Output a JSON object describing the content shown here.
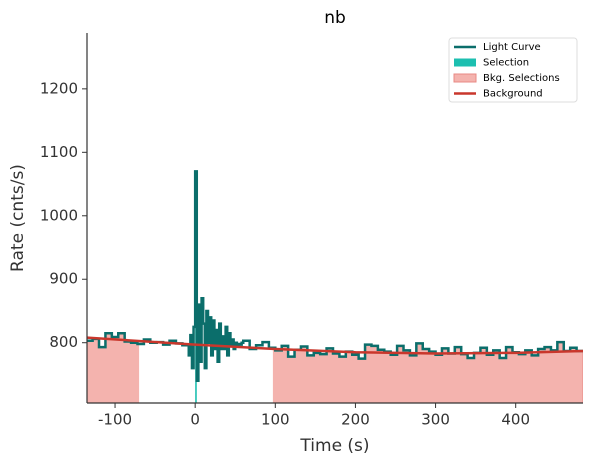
{
  "chart_data": {
    "type": "lightcurve",
    "title": "nb",
    "xlabel": "Time (s)",
    "ylabel": "Rate (cnts/s)",
    "xlim": [
      -135,
      484
    ],
    "ylim": [
      705,
      1288
    ],
    "xticks": [
      -100,
      0,
      100,
      200,
      300,
      400
    ],
    "yticks": [
      800,
      900,
      1000,
      1100,
      1200
    ],
    "legend_loc": "upper right",
    "series": [
      {
        "name": "Light Curve",
        "color": "#0b6e6b",
        "x": [
          -136,
          -128,
          -120,
          -112,
          -104,
          -96,
          -88,
          -80,
          -72,
          -64,
          -56,
          -48,
          -40,
          -32,
          -24,
          -16,
          -8,
          -6,
          -4,
          -2,
          0,
          2,
          4,
          6,
          8,
          10,
          12,
          14,
          16,
          18,
          20,
          22,
          24,
          26,
          28,
          30,
          32,
          34,
          36,
          38,
          40,
          42,
          44,
          46,
          48,
          50,
          52,
          54,
          56,
          58,
          60,
          68,
          76,
          84,
          92,
          100,
          108,
          116,
          124,
          132,
          140,
          148,
          156,
          164,
          172,
          180,
          188,
          196,
          204,
          212,
          220,
          228,
          236,
          244,
          252,
          260,
          268,
          276,
          284,
          292,
          300,
          308,
          316,
          324,
          332,
          340,
          348,
          356,
          364,
          372,
          380,
          388,
          396,
          404,
          412,
          420,
          428,
          436,
          444,
          452,
          460,
          468,
          476
        ],
        "values": [
          803,
          806,
          793,
          815,
          809,
          815,
          802,
          800,
          798,
          805,
          800,
          801,
          797,
          803,
          799,
          796,
          780,
          812,
          760,
          825,
          1070,
          740,
          860,
          770,
          870,
          830,
          760,
          850,
          800,
          840,
          780,
          835,
          790,
          820,
          770,
          830,
          790,
          810,
          790,
          825,
          780,
          815,
          795,
          805,
          790,
          800,
          795,
          798,
          797,
          800,
          803,
          790,
          796,
          801,
          792,
          788,
          795,
          778,
          789,
          794,
          780,
          784,
          782,
          791,
          783,
          778,
          786,
          781,
          775,
          797,
          795,
          789,
          786,
          781,
          795,
          788,
          780,
          799,
          790,
          786,
          781,
          791,
          783,
          793,
          782,
          776,
          784,
          792,
          781,
          788,
          776,
          793,
          785,
          782,
          788,
          780,
          790,
          793,
          788,
          801,
          787,
          792,
          787
        ]
      },
      {
        "name": "Selection",
        "color": "#1dbfb0",
        "range": [
          0,
          2
        ]
      },
      {
        "name": "Bkg. Selections",
        "color": "#f4b3ae",
        "ranges": [
          [
            -135,
            -70
          ],
          [
            97,
            484
          ]
        ]
      },
      {
        "name": "Background",
        "color": "#c9372c",
        "x": [
          -135,
          0,
          100,
          200,
          300,
          400,
          484
        ],
        "values": [
          808,
          797,
          790,
          785,
          783,
          784,
          787
        ]
      }
    ]
  }
}
